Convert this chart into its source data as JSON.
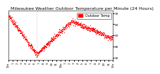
{
  "title": "Milwaukee Weather Outdoor Temperature per Minute (24 Hours)",
  "dot_color": "#FF0000",
  "dot_size": 0.8,
  "background_color": "#FFFFFF",
  "legend_label": "Outdoor Temp",
  "legend_color": "#FF0000",
  "vline_x": 390,
  "vline_color": "#BBBBBB",
  "vline_style": "dotted",
  "ylim": [
    28,
    72
  ],
  "xlim": [
    0,
    1440
  ],
  "yticks": [
    30,
    40,
    50,
    60,
    70
  ],
  "xtick_positions": [
    0,
    60,
    120,
    180,
    240,
    300,
    360,
    420,
    480,
    540,
    600,
    660,
    720,
    780,
    840,
    900,
    960,
    1020,
    1080,
    1140,
    1200,
    1260,
    1320,
    1380,
    1440
  ],
  "xtick_labels": [
    "12a",
    "1",
    "2",
    "3",
    "4",
    "5",
    "6",
    "7",
    "8",
    "9",
    "10",
    "11",
    "12p",
    "1",
    "2",
    "3",
    "4",
    "5",
    "6",
    "7",
    "8",
    "9",
    "10",
    "11",
    "12a"
  ],
  "title_fontsize": 4.5,
  "tick_fontsize": 3.2,
  "legend_fontsize": 3.5,
  "temp_start": 68,
  "temp_min": 33,
  "temp_min_t": 390,
  "temp_peak": 63,
  "temp_peak_t": 870,
  "temp_end": 47
}
